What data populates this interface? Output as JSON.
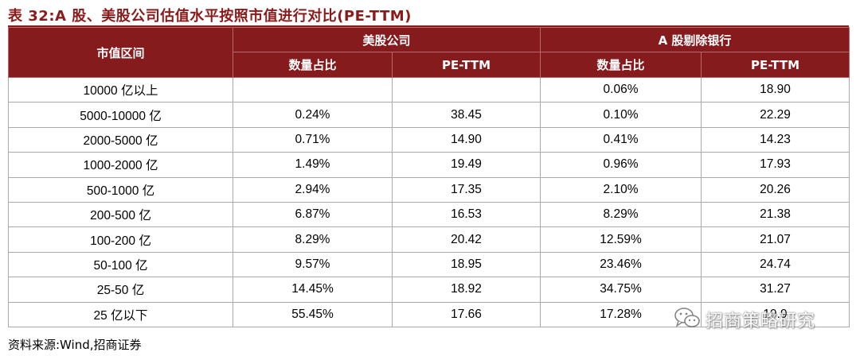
{
  "title": "表 32:A 股、美股公司估值水平按照市值进行对比(PE-TTM)",
  "table": {
    "header_col0": "市值区间",
    "group1": "美股公司",
    "group2": "A 股剔除银行",
    "sub_share": "数量占比",
    "sub_pe": "PE-TTM",
    "rows": [
      {
        "range": "10000 亿以上",
        "us_share": "",
        "us_pe": "",
        "a_share": "0.06%",
        "a_pe": "18.90"
      },
      {
        "range": "5000-10000 亿",
        "us_share": "0.24%",
        "us_pe": "38.45",
        "a_share": "0.10%",
        "a_pe": "22.29"
      },
      {
        "range": "2000-5000 亿",
        "us_share": "0.71%",
        "us_pe": "14.90",
        "a_share": "0.41%",
        "a_pe": "14.23"
      },
      {
        "range": "1000-2000 亿",
        "us_share": "1.49%",
        "us_pe": "19.49",
        "a_share": "0.96%",
        "a_pe": "17.93"
      },
      {
        "range": "500-1000 亿",
        "us_share": "2.94%",
        "us_pe": "17.35",
        "a_share": "2.10%",
        "a_pe": "20.26"
      },
      {
        "range": "200-500 亿",
        "us_share": "6.87%",
        "us_pe": "16.53",
        "a_share": "8.29%",
        "a_pe": "21.38"
      },
      {
        "range": "100-200 亿",
        "us_share": "8.29%",
        "us_pe": "20.42",
        "a_share": "12.59%",
        "a_pe": "21.07"
      },
      {
        "range": "50-100 亿",
        "us_share": "9.57%",
        "us_pe": "18.95",
        "a_share": "23.46%",
        "a_pe": "24.74"
      },
      {
        "range": "25-50 亿",
        "us_share": "14.45%",
        "us_pe": "18.92",
        "a_share": "34.75%",
        "a_pe": "31.27"
      },
      {
        "range": "25 亿以下",
        "us_share": "55.45%",
        "us_pe": "17.66",
        "a_share": "17.28%",
        "a_pe": "19.9"
      }
    ]
  },
  "source": "资料来源:Wind,招商证券",
  "watermark": {
    "icon": "wechat-icon",
    "text": "招商策略研究"
  },
  "colors": {
    "header_bg": "#861b1e",
    "title_text": "#8b1a1a"
  }
}
